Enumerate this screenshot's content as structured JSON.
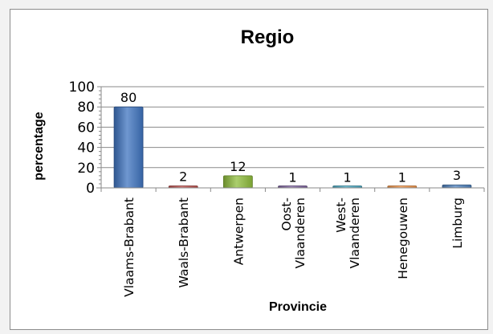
{
  "chart_data": {
    "type": "bar",
    "title": "Regio",
    "xlabel": "Provincie",
    "ylabel": "percentage",
    "ylim": [
      0,
      100
    ],
    "yticks": [
      0,
      20,
      40,
      60,
      80,
      100
    ],
    "grid": true,
    "legend": "none",
    "categories": [
      [
        "Vlaams-Brabant"
      ],
      [
        "Waals-Brabant"
      ],
      [
        "Antwerpen"
      ],
      [
        "Oost-",
        "Vlaanderen"
      ],
      [
        "West-",
        "Vlaanderen"
      ],
      [
        "Henegouwen"
      ],
      [
        "Limburg"
      ]
    ],
    "values": [
      80,
      2,
      12,
      1,
      1,
      1,
      3
    ],
    "colors": [
      "#3f74c0",
      "#c0504d",
      "#8fbd3c",
      "#8064a2",
      "#4bacc6",
      "#f79646",
      "#4f81bd"
    ]
  }
}
